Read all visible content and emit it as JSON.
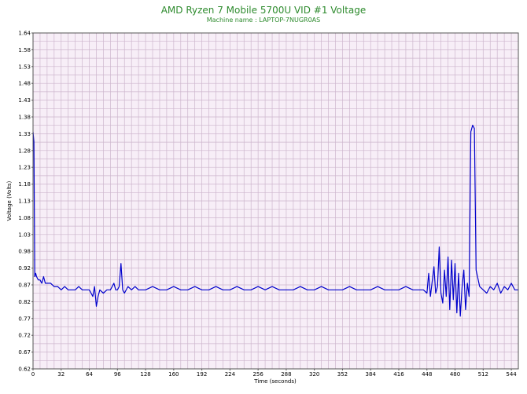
{
  "chart_data": {
    "type": "line",
    "title": "AMD Ryzen 7 Mobile 5700U VID #1 Voltage",
    "subtitle": "Machine name : LAPTOP-7NUGR0AS",
    "xlabel": "Time (seconds)",
    "ylabel": "Voltage (Volts)",
    "xlim": [
      0,
      552
    ],
    "ylim": [
      0.62,
      1.64
    ],
    "x_ticks": [
      0,
      32,
      64,
      96,
      128,
      160,
      192,
      224,
      256,
      288,
      320,
      352,
      384,
      416,
      448,
      480,
      512,
      544
    ],
    "y_ticks": [
      "0.62",
      "0.67",
      "0.72",
      "0.77",
      "0.82",
      "0.87",
      "0.92",
      "0.98",
      "1.03",
      "1.08",
      "1.13",
      "1.18",
      "1.23",
      "1.28",
      "1.33",
      "1.38",
      "1.43",
      "1.48",
      "1.53",
      "1.58",
      "1.64"
    ],
    "grid": true,
    "legend": "none",
    "series": [
      {
        "x": [
          0,
          1,
          2,
          3,
          4,
          6,
          8,
          10,
          12,
          14,
          16,
          20,
          24,
          28,
          32,
          36,
          40,
          44,
          48,
          52,
          56,
          60,
          64,
          66,
          68,
          70,
          72,
          74,
          76,
          80,
          84,
          88,
          92,
          94,
          96,
          98,
          100,
          102,
          104,
          108,
          112,
          116,
          120,
          128,
          136,
          144,
          152,
          160,
          168,
          176,
          184,
          192,
          200,
          208,
          216,
          224,
          232,
          240,
          248,
          256,
          264,
          272,
          280,
          288,
          296,
          304,
          312,
          320,
          328,
          336,
          344,
          352,
          360,
          368,
          376,
          384,
          392,
          400,
          408,
          416,
          424,
          432,
          440,
          444,
          448,
          450,
          452,
          456,
          458,
          460,
          462,
          464,
          466,
          468,
          470,
          472,
          474,
          476,
          478,
          480,
          482,
          484,
          486,
          488,
          490,
          492,
          494,
          496,
          498,
          500,
          502,
          504,
          508,
          512,
          516,
          520,
          524,
          528,
          532,
          536,
          540,
          544,
          548,
          552
        ],
        "y": [
          1.34,
          1.31,
          0.9,
          0.91,
          0.9,
          0.89,
          0.89,
          0.88,
          0.9,
          0.88,
          0.88,
          0.88,
          0.87,
          0.87,
          0.86,
          0.87,
          0.86,
          0.86,
          0.86,
          0.87,
          0.86,
          0.86,
          0.86,
          0.85,
          0.84,
          0.87,
          0.81,
          0.84,
          0.86,
          0.85,
          0.86,
          0.86,
          0.88,
          0.86,
          0.86,
          0.87,
          0.94,
          0.86,
          0.85,
          0.87,
          0.86,
          0.87,
          0.86,
          0.86,
          0.87,
          0.86,
          0.86,
          0.87,
          0.86,
          0.86,
          0.87,
          0.86,
          0.86,
          0.87,
          0.86,
          0.86,
          0.87,
          0.86,
          0.86,
          0.87,
          0.86,
          0.87,
          0.86,
          0.86,
          0.86,
          0.87,
          0.86,
          0.86,
          0.87,
          0.86,
          0.86,
          0.86,
          0.87,
          0.86,
          0.86,
          0.86,
          0.87,
          0.86,
          0.86,
          0.86,
          0.87,
          0.86,
          0.86,
          0.86,
          0.85,
          0.91,
          0.84,
          0.93,
          0.85,
          0.87,
          0.99,
          0.85,
          0.82,
          0.92,
          0.84,
          0.96,
          0.8,
          0.95,
          0.83,
          0.94,
          0.79,
          0.91,
          0.78,
          0.87,
          0.92,
          0.8,
          0.88,
          0.84,
          1.34,
          1.36,
          1.35,
          0.92,
          0.87,
          0.86,
          0.85,
          0.87,
          0.86,
          0.88,
          0.85,
          0.87,
          0.86,
          0.88,
          0.86,
          0.86
        ]
      }
    ]
  },
  "colors": {
    "plot_background": "#f7eef7",
    "grid": "#cdb6cd",
    "line": "#0000cc",
    "title": "#2e8b2e"
  }
}
